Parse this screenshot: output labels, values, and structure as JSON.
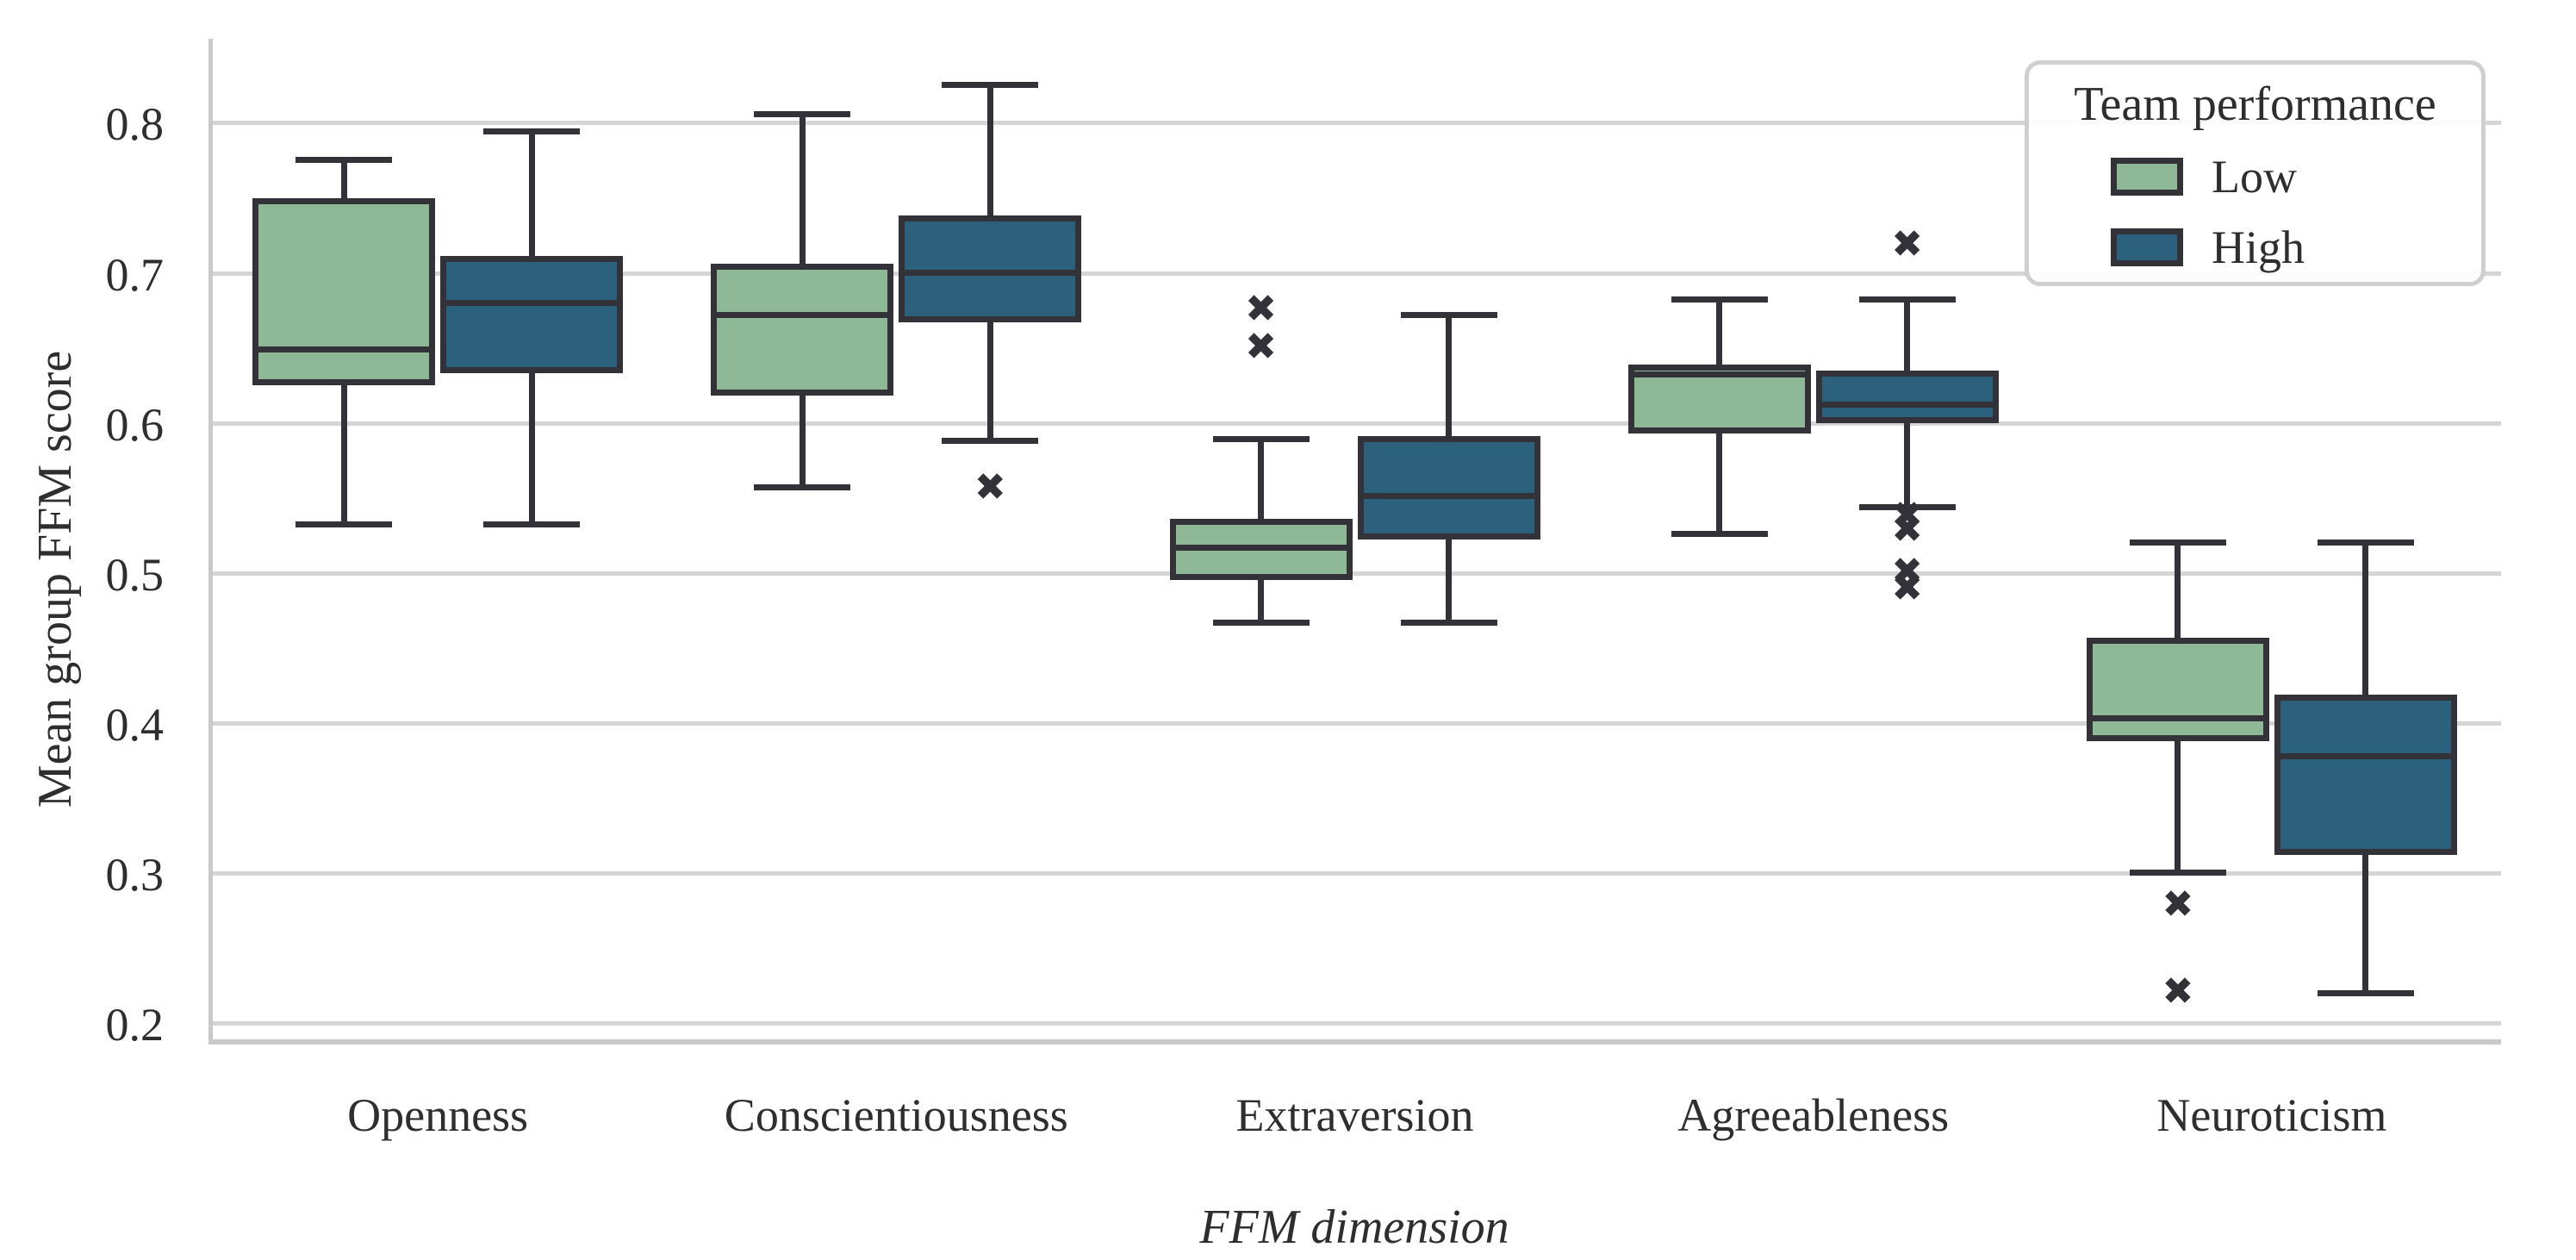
{
  "figure": {
    "y_axis": {
      "label": "Mean group FFM score",
      "tick_labels": [
        "0.8",
        "0.7",
        "0.6",
        "0.5",
        "0.4",
        "0.3",
        "0.2"
      ]
    },
    "x_axis": {
      "label": "FFM dimension"
    },
    "legend": {
      "title": "Team performance",
      "entries": [
        {
          "label": "Low",
          "color": "#8FB896"
        },
        {
          "label": "High",
          "color": "#2B617C"
        }
      ]
    },
    "colors": {
      "low_fill": "#8FB896",
      "high_fill": "#2B617C",
      "line": "#333238",
      "gridline": "#D5D5D5",
      "spine": "#C9C9C9",
      "legend_border": "#CFCFCF",
      "text": "#2E2E2E"
    }
  },
  "chart_data": {
    "type": "boxplot",
    "title": "",
    "xlabel": "FFM dimension",
    "ylabel": "Mean group FFM score",
    "categories": [
      "Openness",
      "Conscientiousness",
      "Extraversion",
      "Agreeableness",
      "Neuroticism"
    ],
    "y_ticks": [
      0.8,
      0.7,
      0.6,
      0.5,
      0.4,
      0.3,
      0.2
    ],
    "ylim": [
      0.189,
      0.856
    ],
    "grid": true,
    "legend_position": "upper right",
    "outlier_marker": "x",
    "series": [
      {
        "name": "Low",
        "color": "#8FB896",
        "boxes": [
          {
            "category": "Openness",
            "whislo": 0.532,
            "q1": 0.625,
            "med": 0.649,
            "q3": 0.75,
            "whishi": 0.775,
            "outliers": []
          },
          {
            "category": "Conscientiousness",
            "whislo": 0.557,
            "q1": 0.618,
            "med": 0.672,
            "q3": 0.706,
            "whishi": 0.806,
            "outliers": []
          },
          {
            "category": "Extraversion",
            "whislo": 0.467,
            "q1": 0.495,
            "med": 0.517,
            "q3": 0.536,
            "whishi": 0.589,
            "outliers": [
              0.675,
              0.65
            ]
          },
          {
            "category": "Agreeableness",
            "whislo": 0.526,
            "q1": 0.593,
            "med": 0.632,
            "q3": 0.639,
            "whishi": 0.682,
            "outliers": []
          },
          {
            "category": "Neuroticism",
            "whislo": 0.3,
            "q1": 0.388,
            "med": 0.403,
            "q3": 0.457,
            "whishi": 0.52,
            "outliers": [
              0.278,
              0.22
            ]
          }
        ]
      },
      {
        "name": "High",
        "color": "#2B617C",
        "boxes": [
          {
            "category": "Openness",
            "whislo": 0.532,
            "q1": 0.633,
            "med": 0.68,
            "q3": 0.711,
            "whishi": 0.794,
            "outliers": []
          },
          {
            "category": "Conscientiousness",
            "whislo": 0.588,
            "q1": 0.667,
            "med": 0.7,
            "q3": 0.738,
            "whishi": 0.825,
            "outliers": [
              0.556
            ]
          },
          {
            "category": "Extraversion",
            "whislo": 0.467,
            "q1": 0.522,
            "med": 0.551,
            "q3": 0.591,
            "whishi": 0.672,
            "outliers": []
          },
          {
            "category": "Agreeableness",
            "whislo": 0.544,
            "q1": 0.6,
            "med": 0.612,
            "q3": 0.635,
            "whishi": 0.682,
            "outliers": [
              0.718,
              0.537,
              0.528,
              0.5,
              0.489
            ]
          },
          {
            "category": "Neuroticism",
            "whislo": 0.22,
            "q1": 0.312,
            "med": 0.378,
            "q3": 0.419,
            "whishi": 0.52,
            "outliers": []
          }
        ]
      }
    ]
  }
}
